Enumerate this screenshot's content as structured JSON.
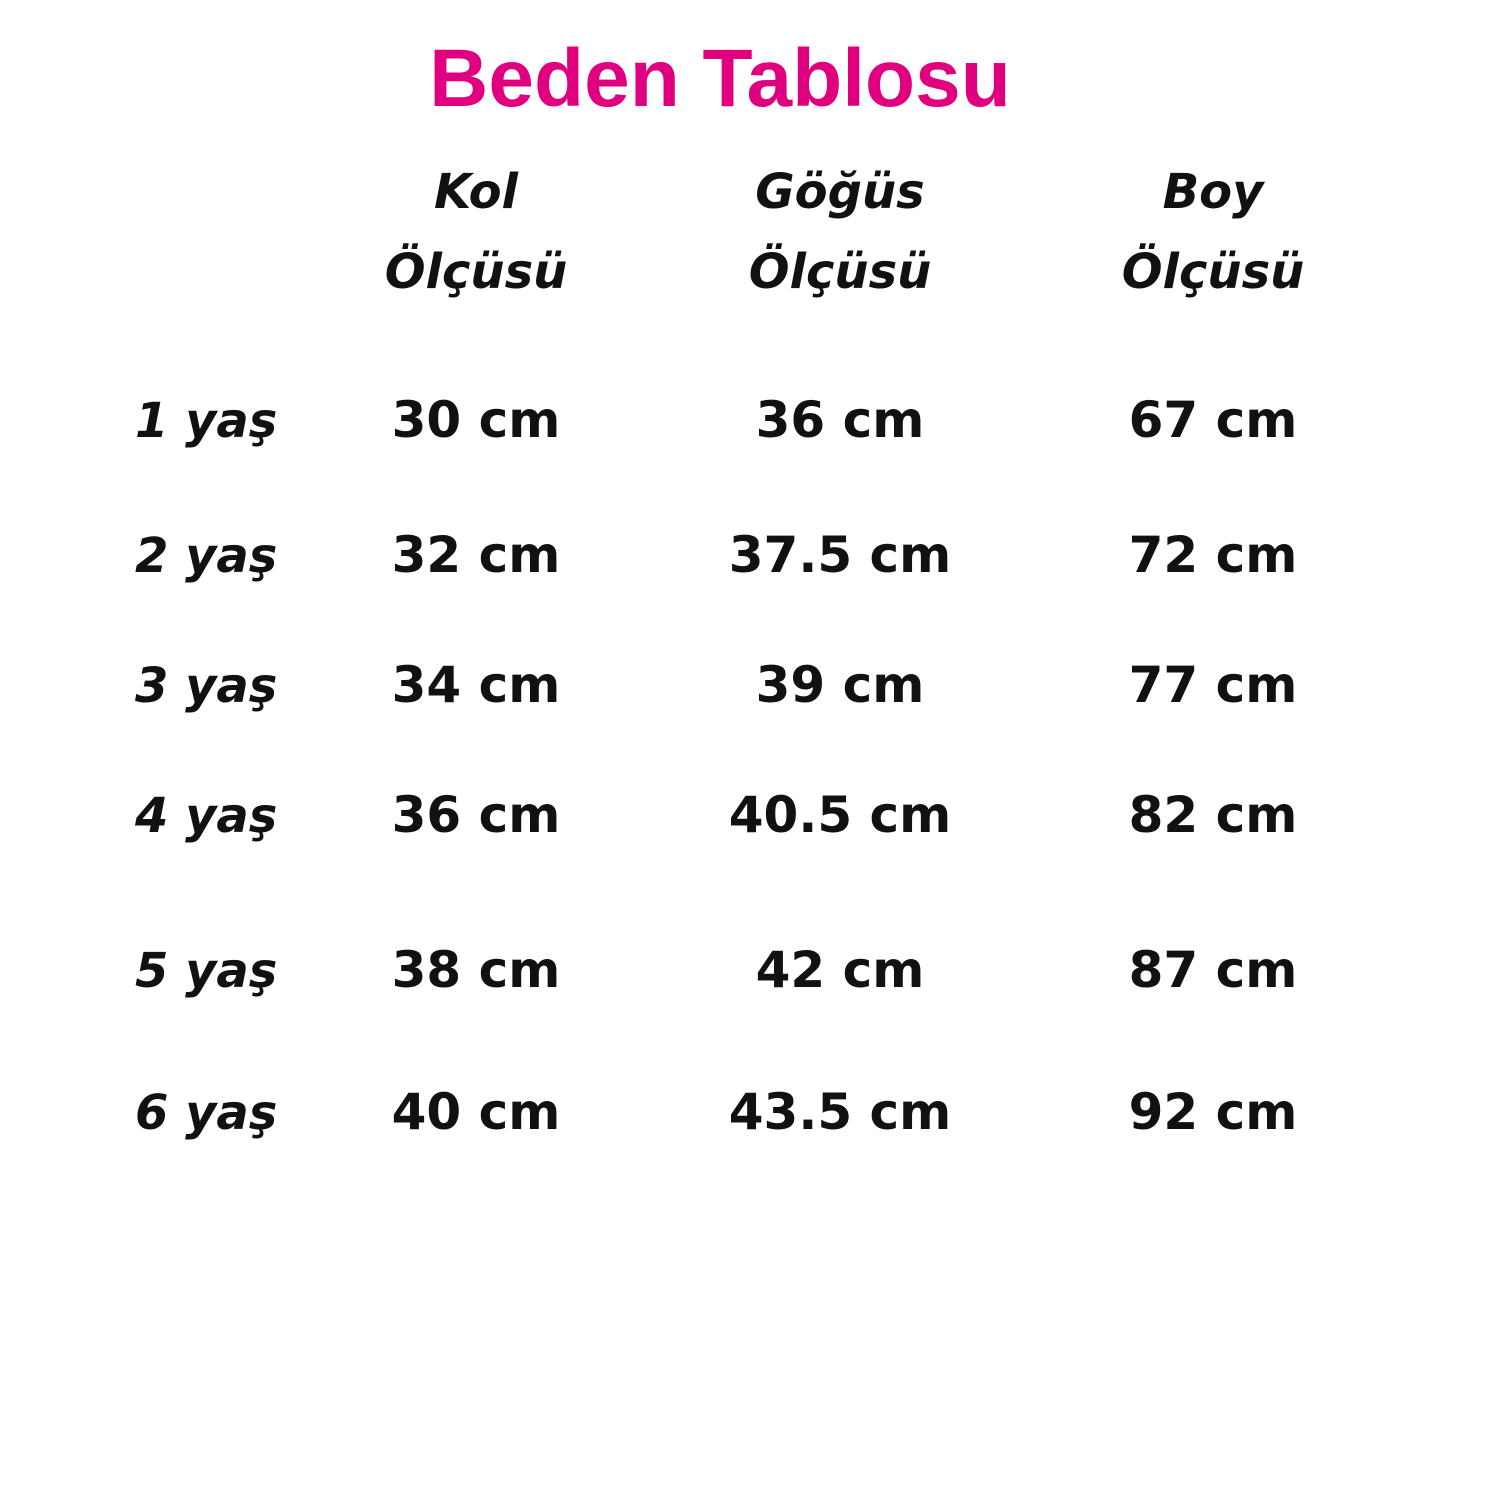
{
  "title": "Beden Tablosu",
  "colors": {
    "title": "#e0007f",
    "text": "#111111"
  },
  "table": {
    "headers": [
      {
        "line1": "Kol",
        "line2": "Ölçüsü"
      },
      {
        "line1": "Göğüs",
        "line2": "Ölçüsü"
      },
      {
        "line1": "Boy",
        "line2": "Ölçüsü"
      }
    ],
    "rows": [
      {
        "label": "1 yaş",
        "kol": "30 cm",
        "gogus": "36 cm",
        "boy": "67 cm"
      },
      {
        "label": "2 yaş",
        "kol": "32 cm",
        "gogus": "37.5 cm",
        "boy": "72 cm"
      },
      {
        "label": "3 yaş",
        "kol": "34 cm",
        "gogus": "39 cm",
        "boy": "77 cm"
      },
      {
        "label": "4 yaş",
        "kol": "36 cm",
        "gogus": "40.5 cm",
        "boy": "82 cm"
      },
      {
        "label": "5 yaş",
        "kol": "38 cm",
        "gogus": "42 cm",
        "boy": "87 cm"
      },
      {
        "label": "6 yaş",
        "kol": "40 cm",
        "gogus": "43.5 cm",
        "boy": "92 cm"
      }
    ]
  }
}
